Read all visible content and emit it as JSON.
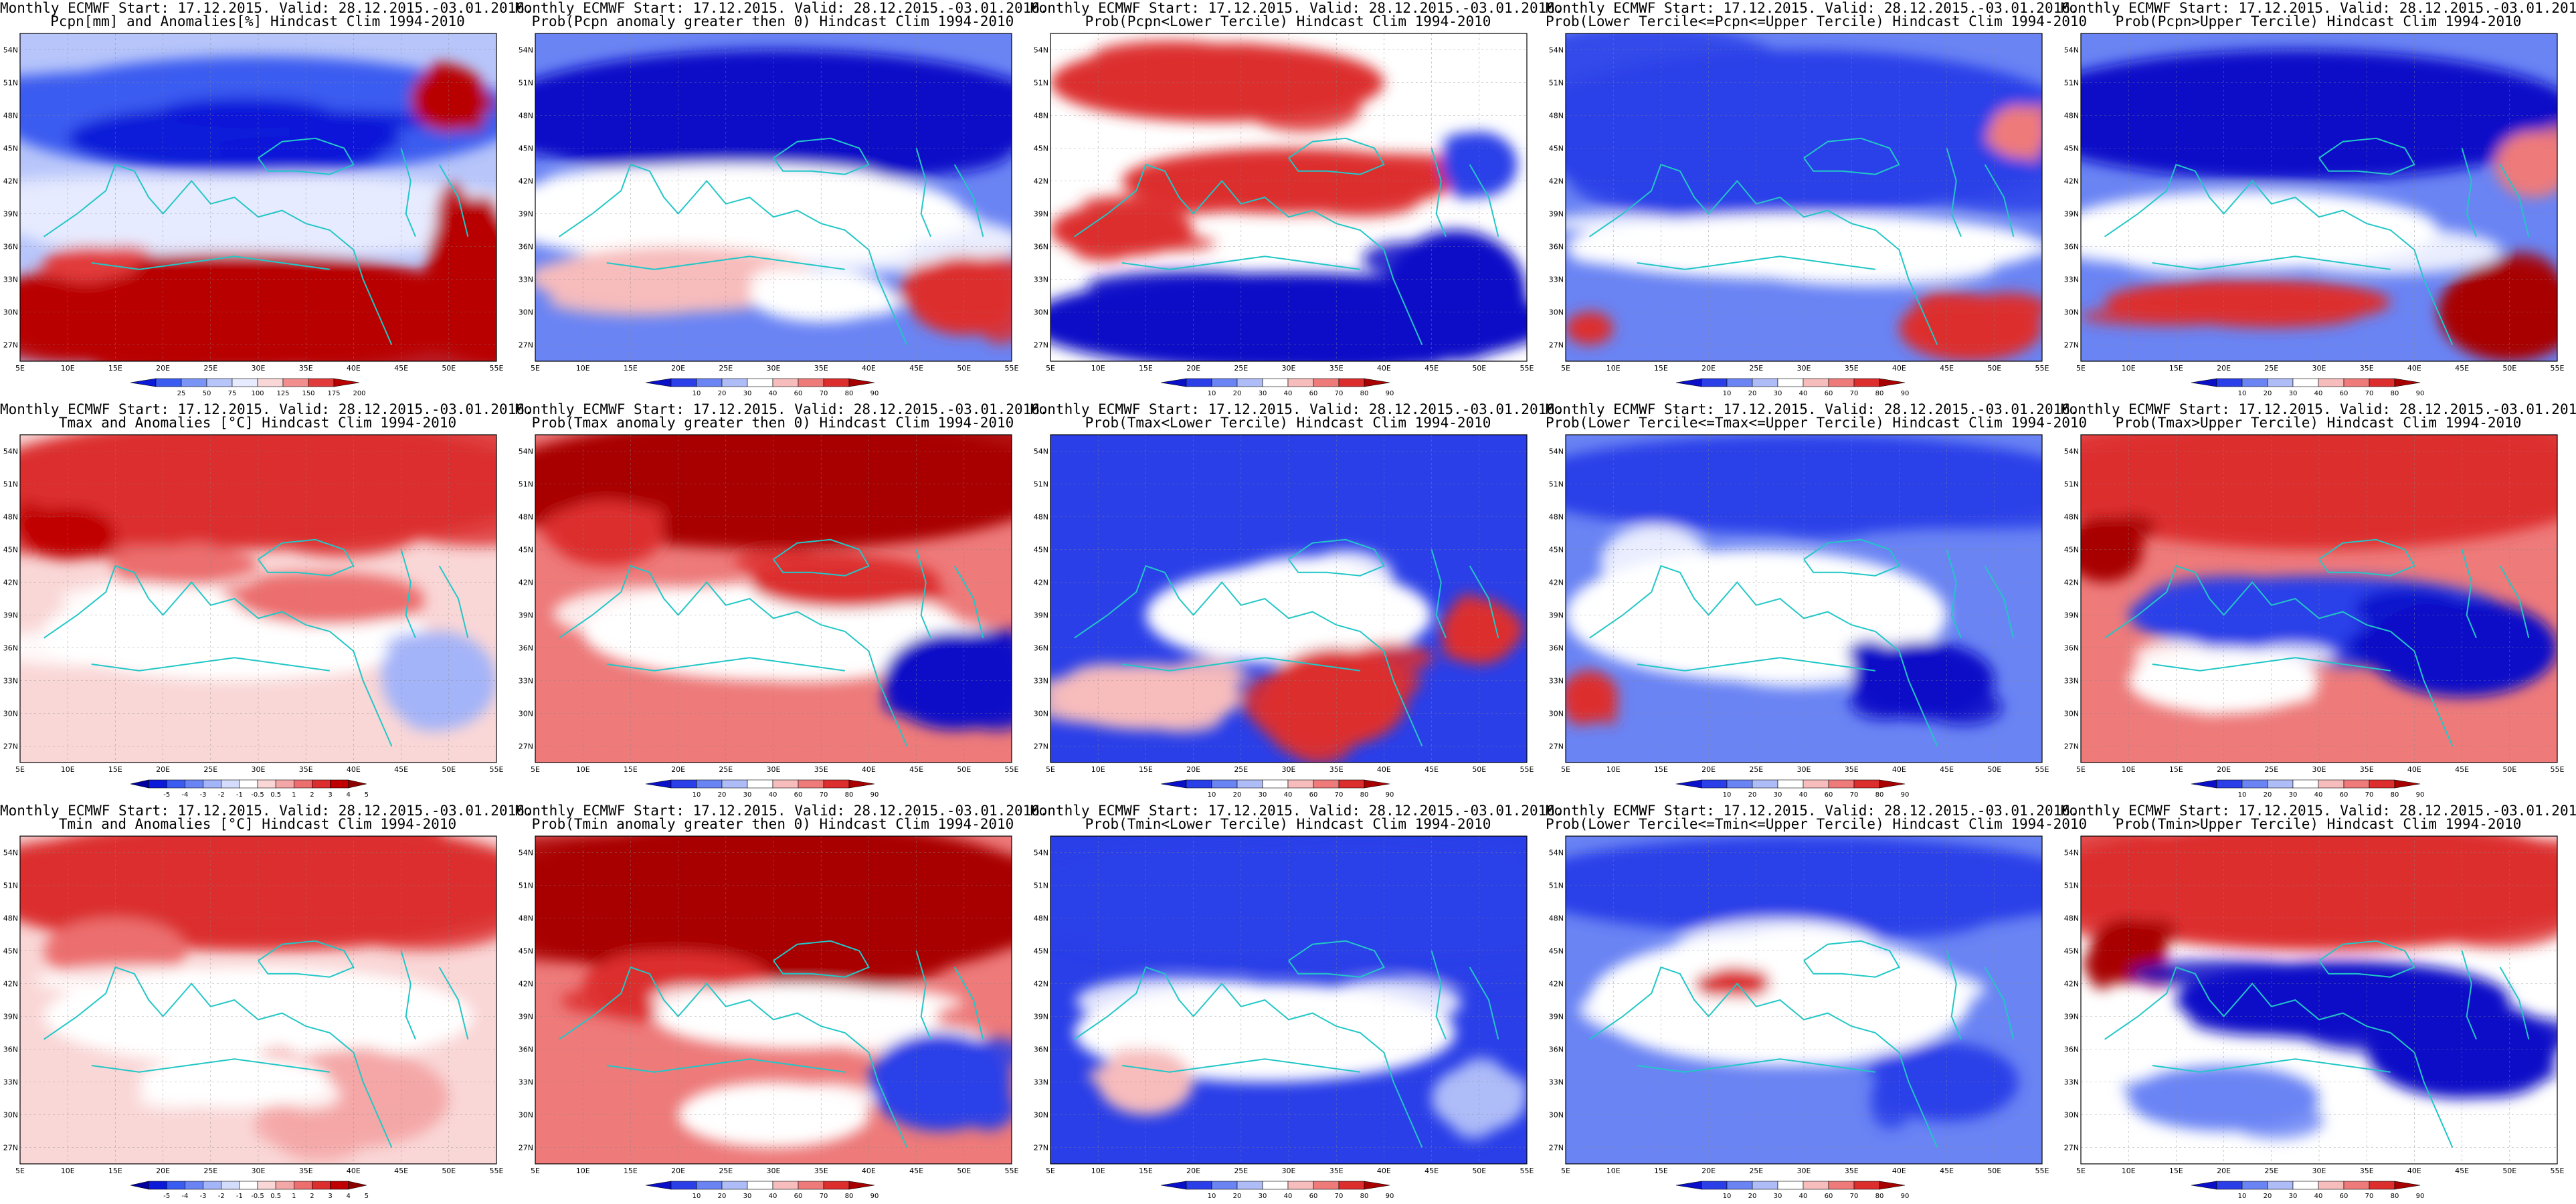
{
  "common": {
    "title_line1": "Monthly ECMWF Start: 17.12.2015. Valid: 28.12.2015.-03.01.2016.",
    "lat_ticks": [
      "27N",
      "30N",
      "33N",
      "36N",
      "39N",
      "42N",
      "45N",
      "48N",
      "51N",
      "54N"
    ],
    "lon_ticks": [
      "5E",
      "10E",
      "15E",
      "20E",
      "25E",
      "30E",
      "35E",
      "40E",
      "45E",
      "50E",
      "55E"
    ]
  },
  "colorbars": {
    "precip": {
      "labels": [
        "25",
        "50",
        "75",
        "100",
        "125",
        "150",
        "175",
        "200"
      ],
      "colors": [
        "#0a1ad8",
        "#3b5cf0",
        "#7b95f6",
        "#b7c5fa",
        "#e6ebff",
        "#fad7d7",
        "#f28e8e",
        "#e23b3b",
        "#b80000"
      ]
    },
    "prob": {
      "labels": [
        "10",
        "20",
        "30",
        "40",
        "60",
        "70",
        "80",
        "90"
      ],
      "colors": [
        "#0a10c8",
        "#2a3fe8",
        "#6a84f4",
        "#aebcf8",
        "#ffffff",
        "#f7bcbc",
        "#ee7a7a",
        "#dd2e2e",
        "#a80000"
      ]
    },
    "anom": {
      "labels": [
        "-5",
        "-4",
        "-3",
        "-2",
        "-1",
        "-0.5",
        "0.5",
        "1",
        "2",
        "3",
        "4",
        "5"
      ],
      "colors": [
        "#0000a0",
        "#0a1ad8",
        "#3b5cf0",
        "#6a84f4",
        "#a4b4f8",
        "#d4dcfc",
        "#ffffff",
        "#fad7d7",
        "#f4a7a7",
        "#ec6e6e",
        "#dc2e2e",
        "#c00000",
        "#8c0000"
      ]
    }
  },
  "panels": [
    {
      "title2": "Pcpn[mm] and Anomalies[%] Hindcast Clim 1994-2010",
      "colorbar": "precip",
      "pattern": "p_anom"
    },
    {
      "title2": "Prob(Pcpn anomaly greater then 0) Hindcast Clim 1994-2010",
      "colorbar": "prob",
      "pattern": "p_gt0"
    },
    {
      "title2": "Prob(Pcpn<Lower Tercile) Hindcast Clim 1994-2010",
      "colorbar": "prob",
      "pattern": "p_low"
    },
    {
      "title2": "Prob(Lower Tercile<=Pcpn<=Upper Tercile) Hindcast Clim 1994-2010",
      "colorbar": "prob",
      "pattern": "p_mid"
    },
    {
      "title2": "Prob(Pcpn>Upper Tercile) Hindcast Clim 1994-2010",
      "colorbar": "prob",
      "pattern": "p_up"
    },
    {
      "title2": "Tmax and Anomalies [°C] Hindcast Clim 1994-2010",
      "colorbar": "anom",
      "pattern": "t_anom"
    },
    {
      "title2": "Prob(Tmax anomaly greater then 0) Hindcast Clim 1994-2010",
      "colorbar": "prob",
      "pattern": "t_gt0"
    },
    {
      "title2": "Prob(Tmax<Lower Tercile) Hindcast Clim 1994-2010",
      "colorbar": "prob",
      "pattern": "t_low"
    },
    {
      "title2": "Prob(Lower Tercile<=Tmax<=Upper Tercile) Hindcast Clim 1994-2010",
      "colorbar": "prob",
      "pattern": "t_mid"
    },
    {
      "title2": "Prob(Tmax>Upper Tercile) Hindcast Clim 1994-2010",
      "colorbar": "prob",
      "pattern": "t_up"
    },
    {
      "title2": "Tmin and Anomalies [°C] Hindcast Clim 1994-2010",
      "colorbar": "anom",
      "pattern": "n_anom"
    },
    {
      "title2": "Prob(Tmin anomaly greater then 0) Hindcast Clim 1994-2010",
      "colorbar": "prob",
      "pattern": "n_gt0"
    },
    {
      "title2": "Prob(Tmin<Lower Tercile) Hindcast Clim 1994-2010",
      "colorbar": "prob",
      "pattern": "n_low"
    },
    {
      "title2": "Prob(Lower Tercile<=Tmin<=Upper Tercile) Hindcast Clim 1994-2010",
      "colorbar": "prob",
      "pattern": "n_mid"
    },
    {
      "title2": "Prob(Tmin>Upper Tercile) Hindcast Clim 1994-2010",
      "colorbar": "prob",
      "pattern": "n_up"
    }
  ]
}
